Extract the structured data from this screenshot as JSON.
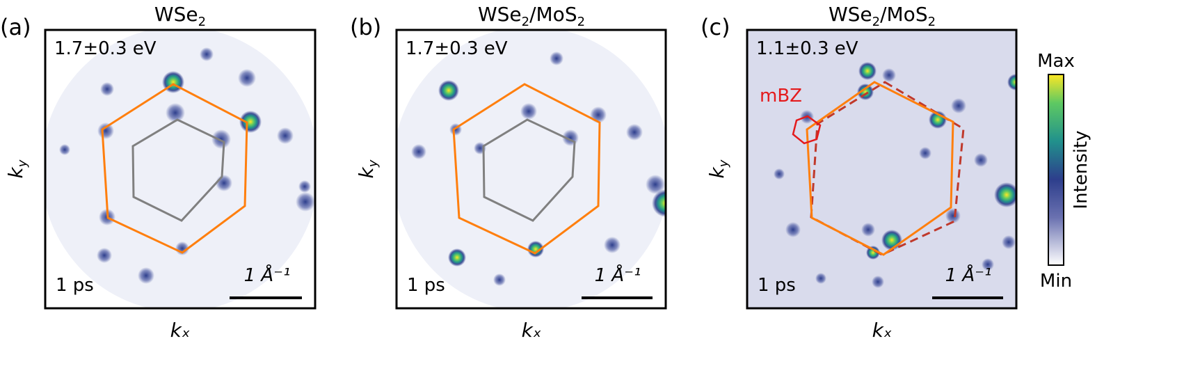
{
  "figure": {
    "panels": [
      {
        "letter": "(a)",
        "title_main": "WSe",
        "title_tail": "",
        "energy": "1.7±0.3 eV",
        "time": "1 ps",
        "scale": "1 Å⁻¹",
        "xlabel": "kₓ",
        "ylabel": "k_y",
        "colors": {
          "outer_hexagon": "#ff7f0e",
          "inner_hexagon": "#808080"
        }
      },
      {
        "letter": "(b)",
        "title_main": "WSe",
        "title_tail": "/MoS",
        "energy": "1.7±0.3 eV",
        "time": "1 ps",
        "scale": "1 Å⁻¹",
        "xlabel": "kₓ",
        "ylabel": "k_y",
        "colors": {
          "outer_hexagon": "#ff7f0e",
          "inner_hexagon": "#808080"
        }
      },
      {
        "letter": "(c)",
        "title_main": "WSe",
        "title_tail": "/MoS",
        "energy": "1.1±0.3 eV",
        "time": "1 ps",
        "scale": "1 Å⁻¹",
        "xlabel": "kₓ",
        "ylabel": "k_y",
        "annotation": "mBZ",
        "colors": {
          "outer_hexagon": "#ff7f0e",
          "dashed_hexagon": "#c0392b",
          "mbz_hexagon": "#e41a1c"
        }
      }
    ],
    "colorbar": {
      "max_label": "Max",
      "min_label": "Min",
      "label": "Intensity",
      "colormap": [
        "#ffffff",
        "#2d3e8c",
        "#21918c",
        "#5ec962",
        "#fde725"
      ]
    }
  }
}
